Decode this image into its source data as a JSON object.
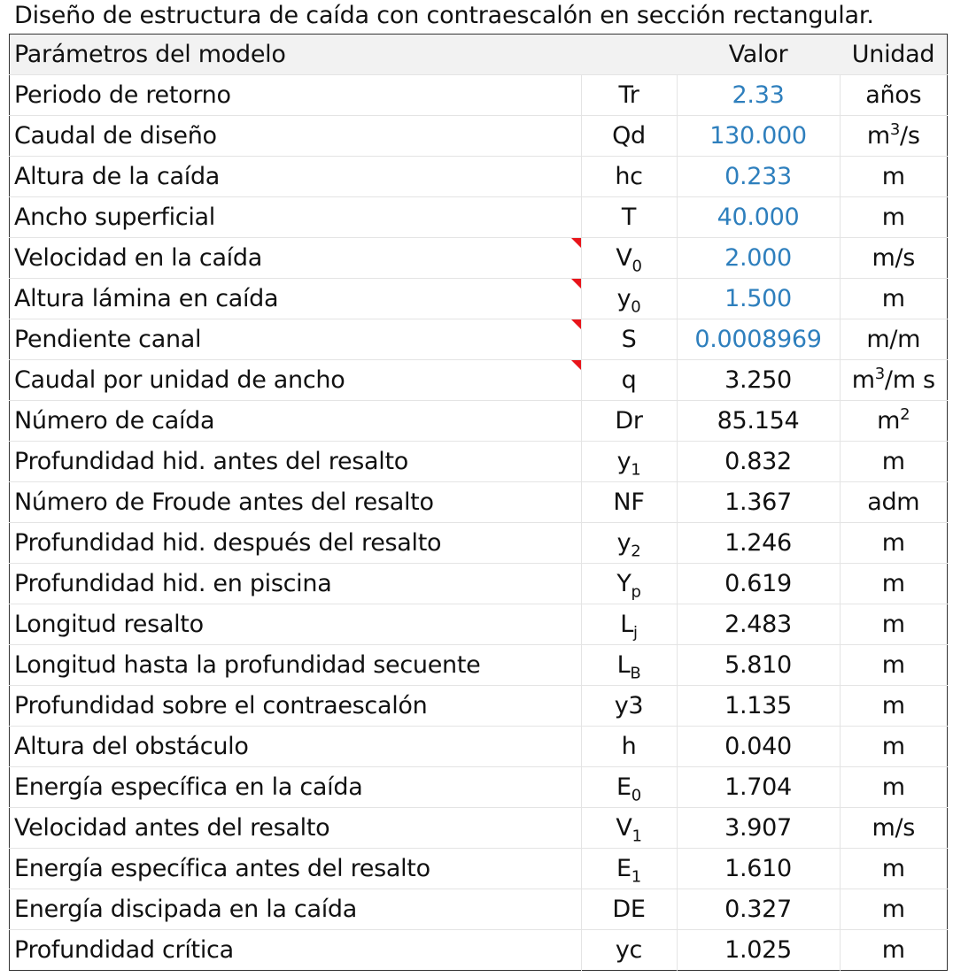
{
  "title": "Diseño de estructura de caída con contraescalón en sección rectangular.",
  "header": {
    "param": "Parámetros del modelo",
    "value": "Valor",
    "unit": "Unidad"
  },
  "rows": [
    {
      "name": "Periodo de retorno",
      "sym": "Tr",
      "value": "2.33",
      "unit": "años",
      "input": true
    },
    {
      "name": "Caudal de diseño",
      "sym": "Qd",
      "value": "130.000",
      "unit": "m",
      "unit_sup": "3",
      "unit_after": "/s",
      "input": true
    },
    {
      "name": "Altura de la caída",
      "sym": "hc",
      "value": "0.233",
      "unit": "m",
      "input": true
    },
    {
      "name": "Ancho superficial",
      "sym": "T",
      "value": "40.000",
      "unit": "m",
      "input": true
    },
    {
      "name": "Velocidad en la caída",
      "sym": "V",
      "sym_sub": "0",
      "value": "2.000",
      "unit": "m/s",
      "input": true,
      "note": true
    },
    {
      "name": "Altura lámina en caída",
      "sym": "y",
      "sym_sub": "0",
      "value": "1.500",
      "unit": "m",
      "input": true,
      "note": true
    },
    {
      "name": "Pendiente canal",
      "sym": "S",
      "value": "0.0008969",
      "unit": "m/m",
      "input": true,
      "note": true
    },
    {
      "name": "Caudal por unidad de ancho",
      "sym": "q",
      "value": "3.250",
      "unit": "m",
      "unit_sup": "3",
      "unit_after": "/m s",
      "note": true
    },
    {
      "name": "Número de caída",
      "sym": "Dr",
      "value": "85.154",
      "unit": "m",
      "unit_sup": "2"
    },
    {
      "name": "Profundidad hid. antes del resalto",
      "sym": "y",
      "sym_sub": "1",
      "value": "0.832",
      "unit": "m"
    },
    {
      "name": "Número de Froude antes del resalto",
      "sym": "NF",
      "value": "1.367",
      "unit": "adm"
    },
    {
      "name": "Profundidad hid. después del resalto",
      "sym": "y",
      "sym_sub": "2",
      "value": "1.246",
      "unit": "m"
    },
    {
      "name": "Profundidad hid. en piscina",
      "sym": "Y",
      "sym_sub": "p",
      "value": "0.619",
      "unit": "m"
    },
    {
      "name": "Longitud resalto",
      "sym": "L",
      "sym_sub": "j",
      "value": "2.483",
      "unit": "m"
    },
    {
      "name": "Longitud hasta la profundidad secuente",
      "sym": "L",
      "sym_sub": "B",
      "value": "5.810",
      "unit": "m"
    },
    {
      "name": "Profundidad sobre el contraescalón",
      "sym": "y3",
      "value": "1.135",
      "unit": "m"
    },
    {
      "name": "Altura del obstáculo",
      "sym": "h",
      "value": "0.040",
      "unit": "m"
    },
    {
      "name": "Energía específica en la caída",
      "sym": "E",
      "sym_sub": "0",
      "value": "1.704",
      "unit": "m"
    },
    {
      "name": "Velocidad antes del resalto",
      "sym": "V",
      "sym_sub": "1",
      "value": "3.907",
      "unit": "m/s"
    },
    {
      "name": "Energía específica antes del resalto",
      "sym": "E",
      "sym_sub": "1",
      "value": "1.610",
      "unit": "m"
    },
    {
      "name": "Energía discipada en la caída",
      "sym": "DE",
      "value": "0.327",
      "unit": "m"
    },
    {
      "name": "Profundidad crítica",
      "sym": "yc",
      "value": "1.025",
      "unit": "m"
    }
  ],
  "colors": {
    "input_value": "#2e7fbd",
    "note_marker": "#e8141a",
    "header_bg": "#f2f2f2"
  }
}
